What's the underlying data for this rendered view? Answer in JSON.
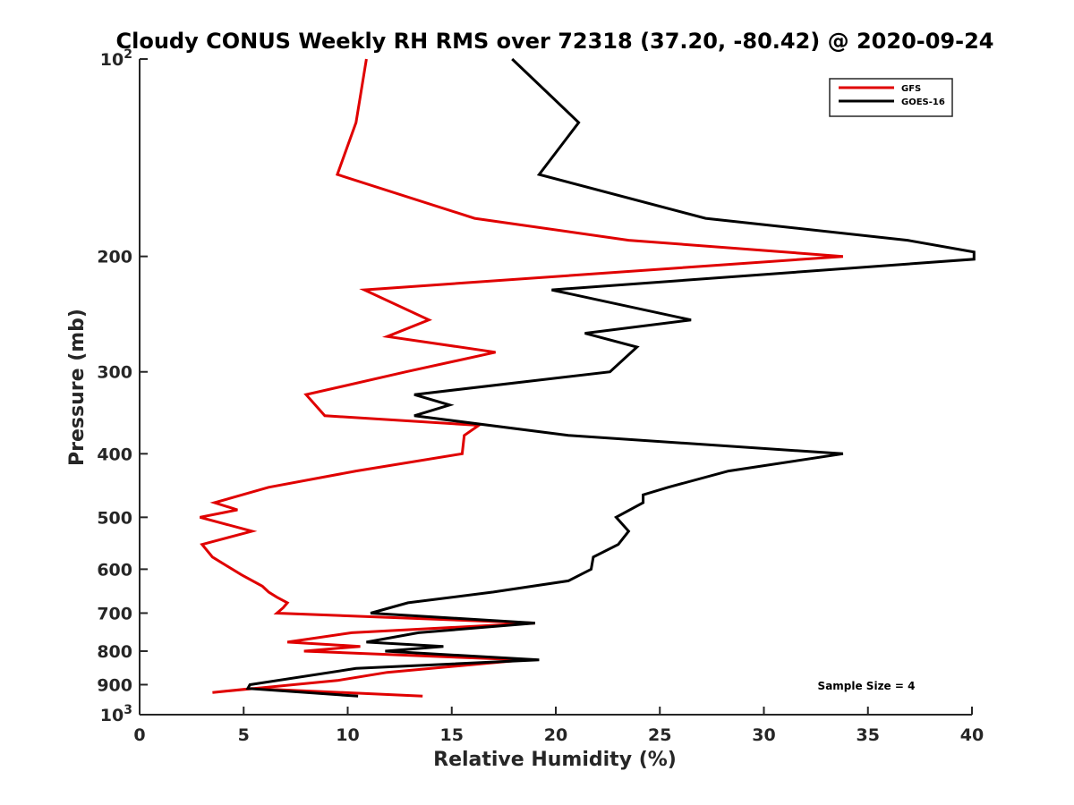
{
  "chart_data": {
    "type": "line",
    "title": "Cloudy CONUS Weekly RH RMS over 72318 (37.20, -80.42) @ 2020-09-24",
    "xlabel": "Relative Humidity (%)",
    "ylabel": "Pressure (mb)",
    "xlim": [
      0,
      40
    ],
    "ylim": [
      100,
      1000
    ],
    "yscale": "log",
    "y_reversed": true,
    "x_ticks": [
      0,
      5,
      10,
      15,
      20,
      25,
      30,
      35,
      40
    ],
    "x_tick_labels": [
      "0",
      "5",
      "10",
      "15",
      "20",
      "25",
      "30",
      "35",
      "40"
    ],
    "y_ticks": [
      100,
      200,
      300,
      400,
      500,
      600,
      700,
      800,
      900,
      1000
    ],
    "y_tick_labels": [
      {
        "base": "10",
        "exp": "2"
      },
      {
        "base": "200",
        "exp": ""
      },
      {
        "base": "300",
        "exp": ""
      },
      {
        "base": "400",
        "exp": ""
      },
      {
        "base": "500",
        "exp": ""
      },
      {
        "base": "600",
        "exp": ""
      },
      {
        "base": "700",
        "exp": ""
      },
      {
        "base": "800",
        "exp": ""
      },
      {
        "base": "900",
        "exp": ""
      },
      {
        "base": "10",
        "exp": "3"
      }
    ],
    "legend_position": "top-right",
    "grid": false,
    "annotation": "Sample Size = 4",
    "series": [
      {
        "name": "GFS",
        "color": "#e00000",
        "points": [
          [
            10.9,
            100
          ],
          [
            10.4,
            125
          ],
          [
            9.5,
            150
          ],
          [
            16.1,
            175
          ],
          [
            23.5,
            189
          ],
          [
            33.8,
            200
          ],
          [
            10.8,
            225
          ],
          [
            13.9,
            250
          ],
          [
            11.9,
            265
          ],
          [
            17.1,
            280
          ],
          [
            12.8,
            300
          ],
          [
            8.0,
            325
          ],
          [
            8.9,
            350
          ],
          [
            16.3,
            362
          ],
          [
            15.6,
            375
          ],
          [
            15.5,
            400
          ],
          [
            10.4,
            425
          ],
          [
            6.2,
            450
          ],
          [
            3.6,
            475
          ],
          [
            4.7,
            487
          ],
          [
            2.9,
            500
          ],
          [
            5.4,
            525
          ],
          [
            3.0,
            550
          ],
          [
            3.5,
            575
          ],
          [
            4.9,
            612
          ],
          [
            5.9,
            637
          ],
          [
            6.2,
            650
          ],
          [
            6.6,
            662
          ],
          [
            7.1,
            675
          ],
          [
            6.9,
            687
          ],
          [
            6.6,
            700
          ],
          [
            19.0,
            725
          ],
          [
            10.2,
            750
          ],
          [
            7.1,
            775
          ],
          [
            10.6,
            787
          ],
          [
            7.9,
            800
          ],
          [
            18.5,
            825
          ],
          [
            11.9,
            862
          ],
          [
            9.5,
            887
          ],
          [
            3.5,
            925
          ],
          [
            5.4,
            912
          ],
          [
            13.6,
            937
          ]
        ]
      },
      {
        "name": "GOES-16",
        "color": "#000000",
        "points": [
          [
            17.9,
            100
          ],
          [
            21.1,
            125
          ],
          [
            19.2,
            150
          ],
          [
            27.2,
            175
          ],
          [
            36.9,
            189
          ],
          [
            40.1,
            197
          ],
          [
            40.1,
            202
          ],
          [
            19.8,
            225
          ],
          [
            26.5,
            250
          ],
          [
            21.4,
            262
          ],
          [
            23.9,
            275
          ],
          [
            22.6,
            300
          ],
          [
            13.2,
            325
          ],
          [
            14.9,
            337
          ],
          [
            13.2,
            350
          ],
          [
            20.6,
            375
          ],
          [
            33.8,
            400
          ],
          [
            28.3,
            425
          ],
          [
            25.4,
            450
          ],
          [
            24.2,
            462
          ],
          [
            24.2,
            475
          ],
          [
            22.9,
            500
          ],
          [
            23.5,
            525
          ],
          [
            23.0,
            550
          ],
          [
            21.8,
            575
          ],
          [
            21.7,
            600
          ],
          [
            20.6,
            625
          ],
          [
            17.0,
            650
          ],
          [
            12.9,
            675
          ],
          [
            11.1,
            700
          ],
          [
            19.0,
            725
          ],
          [
            13.4,
            750
          ],
          [
            10.9,
            775
          ],
          [
            14.6,
            787
          ],
          [
            11.8,
            800
          ],
          [
            19.2,
            825
          ],
          [
            10.4,
            850
          ],
          [
            5.3,
            900
          ],
          [
            5.2,
            912
          ],
          [
            10.5,
            937
          ]
        ]
      }
    ]
  }
}
